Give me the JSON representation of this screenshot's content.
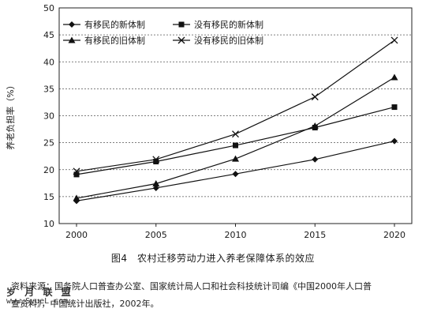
{
  "chart_data": {
    "type": "line",
    "title": "",
    "xlabel": "",
    "ylabel": "养老负担率（%）",
    "x": [
      2000,
      2005,
      2010,
      2015,
      2020
    ],
    "ylim": [
      10,
      50
    ],
    "yticks": [
      10,
      15,
      20,
      25,
      30,
      35,
      40,
      45,
      50
    ],
    "grid": "horizontal dashed",
    "legend_position": "top-left",
    "series": [
      {
        "name": "有移民的新体制",
        "marker": "diamond",
        "values": [
          14.2,
          16.6,
          19.2,
          21.9,
          25.3
        ]
      },
      {
        "name": "没有移民的新体制",
        "marker": "square",
        "values": [
          19.1,
          21.5,
          24.5,
          27.8,
          31.6
        ]
      },
      {
        "name": "有移民的旧体制",
        "marker": "triangle",
        "values": [
          14.7,
          17.4,
          22.0,
          28.1,
          37.1
        ]
      },
      {
        "name": "没有移民的旧体制",
        "marker": "cross",
        "values": [
          19.7,
          21.9,
          26.6,
          33.5,
          44.0
        ]
      }
    ]
  },
  "caption": "图4　农村迁移劳动力进入养老保障体系的效应",
  "source": {
    "line1": "资料来源：国务院人口普查办公室、国家统计局人口和社会科技统计司编《中国2000年人口普",
    "line2": "查资料》，中国统计出版社，2002年。"
  },
  "watermark": {
    "line1": "岁 月 联 盟",
    "line2": "www.SyueL.com"
  }
}
